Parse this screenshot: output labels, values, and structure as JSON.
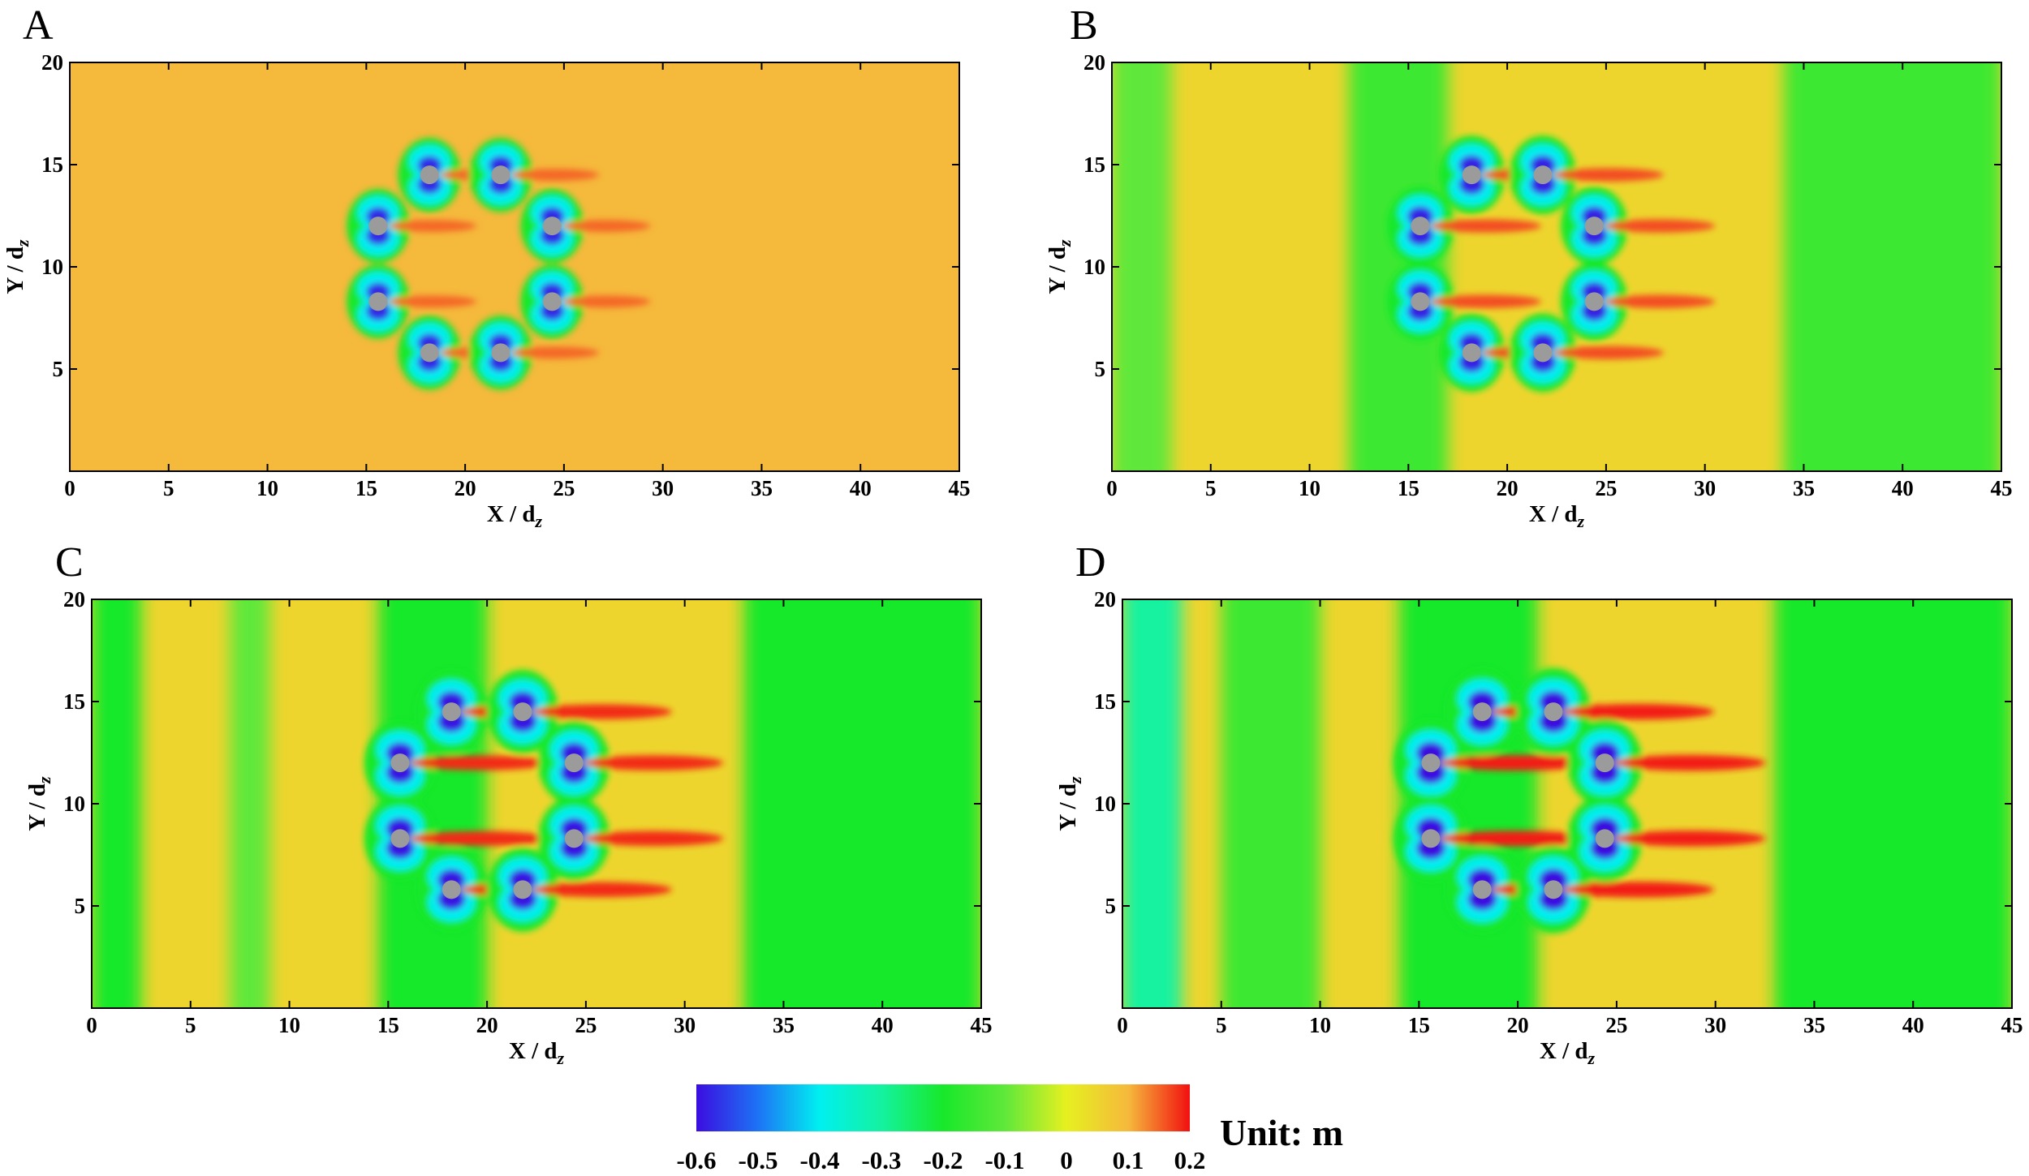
{
  "figure": {
    "unit_label": "Unit: m"
  },
  "chart_data": [
    {
      "type": "heatmap",
      "panel": "A",
      "xlabel": "X / d",
      "xlabel_sub": "z",
      "ylabel": "Y / d",
      "ylabel_sub": "z",
      "xlim": [
        0,
        45
      ],
      "ylim": [
        0,
        20
      ],
      "xticks": [
        0,
        5,
        10,
        15,
        20,
        25,
        30,
        35,
        40,
        45
      ],
      "yticks": [
        5,
        10,
        15,
        20
      ],
      "background_level": 0.1,
      "piles": [
        [
          18.2,
          14.5
        ],
        [
          21.8,
          14.5
        ],
        [
          15.6,
          12.0
        ],
        [
          24.4,
          12.0
        ],
        [
          15.6,
          8.3
        ],
        [
          24.4,
          8.3
        ],
        [
          18.2,
          5.8
        ],
        [
          21.8,
          5.8
        ]
      ],
      "scour_intensity": 0.4,
      "wake_intensity": 0.35,
      "bands": []
    },
    {
      "type": "heatmap",
      "panel": "B",
      "xlabel": "X / d",
      "xlabel_sub": "z",
      "ylabel": "Y / d",
      "ylabel_sub": "z",
      "xlim": [
        0,
        45
      ],
      "ylim": [
        0,
        20
      ],
      "xticks": [
        0,
        5,
        10,
        15,
        20,
        25,
        30,
        35,
        40,
        45
      ],
      "yticks": [
        5,
        10,
        15,
        20
      ],
      "background_level": 0.05,
      "piles": [
        [
          18.2,
          14.5
        ],
        [
          21.8,
          14.5
        ],
        [
          15.6,
          12.0
        ],
        [
          24.4,
          12.0
        ],
        [
          15.6,
          8.3
        ],
        [
          24.4,
          8.3
        ],
        [
          18.2,
          5.8
        ],
        [
          21.8,
          5.8
        ]
      ],
      "scour_intensity": 0.6,
      "wake_intensity": 0.55,
      "bands": [
        {
          "x0": 0,
          "x1": 3,
          "level": -0.1
        },
        {
          "x0": 12,
          "x1": 17,
          "level": -0.15
        },
        {
          "x0": 34,
          "x1": 45,
          "level": -0.15
        }
      ]
    },
    {
      "type": "heatmap",
      "panel": "C",
      "xlabel": "X / d",
      "xlabel_sub": "z",
      "ylabel": "Y / d",
      "ylabel_sub": "z",
      "xlim": [
        0,
        45
      ],
      "ylim": [
        0,
        20
      ],
      "xticks": [
        0,
        5,
        10,
        15,
        20,
        25,
        30,
        35,
        40,
        45
      ],
      "yticks": [
        5,
        10,
        15,
        20
      ],
      "background_level": 0.05,
      "piles": [
        [
          18.2,
          14.5
        ],
        [
          21.8,
          14.5
        ],
        [
          15.6,
          12.0
        ],
        [
          24.4,
          12.0
        ],
        [
          15.6,
          8.3
        ],
        [
          24.4,
          8.3
        ],
        [
          18.2,
          5.8
        ],
        [
          21.8,
          5.8
        ]
      ],
      "scour_intensity": 0.85,
      "wake_intensity": 0.8,
      "bands": [
        {
          "x0": 0,
          "x1": 2.5,
          "level": -0.2
        },
        {
          "x0": 7,
          "x1": 9,
          "level": -0.1
        },
        {
          "x0": 14.5,
          "x1": 20,
          "level": -0.2
        },
        {
          "x0": 33,
          "x1": 45,
          "level": -0.2
        }
      ]
    },
    {
      "type": "heatmap",
      "panel": "D",
      "xlabel": "X / d",
      "xlabel_sub": "z",
      "ylabel": "Y / d",
      "ylabel_sub": "z",
      "xlim": [
        0,
        45
      ],
      "ylim": [
        0,
        20
      ],
      "xticks": [
        0,
        5,
        10,
        15,
        20,
        25,
        30,
        35,
        40,
        45
      ],
      "yticks": [
        5,
        10,
        15,
        20
      ],
      "background_level": 0.05,
      "piles": [
        [
          18.2,
          14.5
        ],
        [
          21.8,
          14.5
        ],
        [
          15.6,
          12.0
        ],
        [
          24.4,
          12.0
        ],
        [
          15.6,
          8.3
        ],
        [
          24.4,
          8.3
        ],
        [
          18.2,
          5.8
        ],
        [
          21.8,
          5.8
        ]
      ],
      "scour_intensity": 1.0,
      "wake_intensity": 0.9,
      "bands": [
        {
          "x0": 0,
          "x1": 3,
          "level": -0.3
        },
        {
          "x0": 5,
          "x1": 10,
          "level": -0.15
        },
        {
          "x0": 14,
          "x1": 21,
          "level": -0.2
        },
        {
          "x0": 33,
          "x1": 45,
          "level": -0.2
        }
      ]
    }
  ],
  "colorbar": {
    "min": -0.6,
    "max": 0.2,
    "ticks": [
      "-0.6",
      "-0.5",
      "-0.4",
      "-0.3",
      "-0.2",
      "-0.1",
      "0",
      "0.1",
      "0.2"
    ],
    "stops": [
      {
        "v": -0.6,
        "color": "#3b0de0"
      },
      {
        "v": -0.5,
        "color": "#1d73f5"
      },
      {
        "v": -0.4,
        "color": "#00f0f0"
      },
      {
        "v": -0.3,
        "color": "#14f2a0"
      },
      {
        "v": -0.2,
        "color": "#18e82a"
      },
      {
        "v": -0.1,
        "color": "#5fe83a"
      },
      {
        "v": 0.0,
        "color": "#e6f020"
      },
      {
        "v": 0.1,
        "color": "#f5b93c"
      },
      {
        "v": 0.2,
        "color": "#f21010"
      }
    ]
  }
}
